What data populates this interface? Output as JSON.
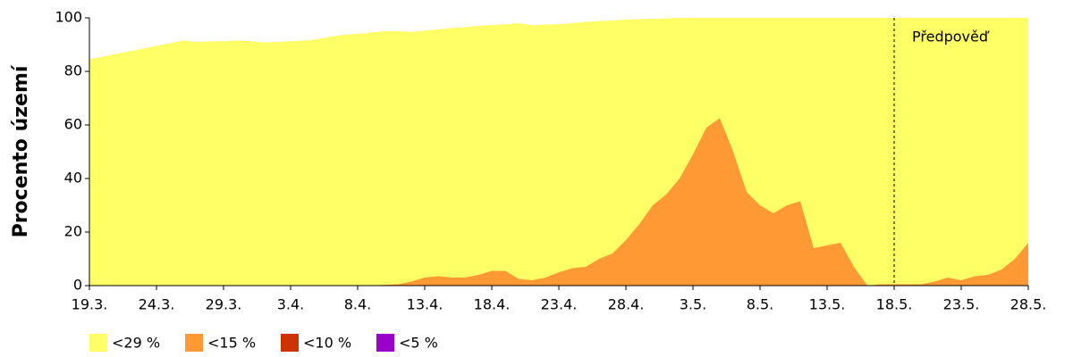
{
  "chart_data": {
    "type": "area",
    "ylabel": "Procento území",
    "categories": [
      "19.3.",
      null,
      null,
      null,
      null,
      "24.3.",
      null,
      null,
      null,
      null,
      "29.3.",
      null,
      null,
      null,
      null,
      "3.4.",
      null,
      null,
      null,
      null,
      "8.4.",
      null,
      null,
      null,
      null,
      "13.4.",
      null,
      null,
      null,
      null,
      "18.4.",
      null,
      null,
      null,
      null,
      "23.4.",
      null,
      null,
      null,
      null,
      "28.4.",
      null,
      null,
      null,
      null,
      "3.5.",
      null,
      null,
      null,
      null,
      "8.5.",
      null,
      null,
      null,
      null,
      "13.5.",
      null,
      null,
      null,
      null,
      "18.5.",
      null,
      null,
      null,
      null,
      "23.5.",
      null,
      null,
      null,
      null,
      "28.5."
    ],
    "series": [
      {
        "name": "<29 %",
        "color": "#ffff66",
        "values": [
          84.5,
          85.5,
          86.5,
          87.5,
          88.5,
          89.5,
          90.5,
          91.5,
          91,
          91.2,
          91.3,
          91.5,
          91.3,
          90.8,
          91,
          91.3,
          91.5,
          92,
          93,
          93.7,
          94,
          94.5,
          95,
          95,
          94.7,
          95.2,
          95.7,
          96.2,
          96.5,
          97,
          97.3,
          97.6,
          98,
          97.3,
          97.5,
          97.6,
          98,
          98.5,
          98.8,
          99,
          99.3,
          99.5,
          99.6,
          99.8,
          100,
          100,
          100,
          100,
          100,
          100,
          100,
          100,
          100,
          100,
          100,
          100,
          100,
          100,
          100,
          100,
          100,
          100,
          100,
          100,
          100,
          100,
          100,
          100,
          100,
          100,
          100
        ]
      },
      {
        "name": "<15 %",
        "color": "#ff9933",
        "values": [
          0,
          0,
          0,
          0,
          0,
          0,
          0,
          0,
          0,
          0,
          0,
          0,
          0,
          0,
          0,
          0,
          0,
          0,
          0,
          0,
          0,
          0,
          0.3,
          0.5,
          1.5,
          3,
          3.5,
          3,
          3,
          4,
          5.5,
          5.5,
          2.5,
          2,
          3,
          5,
          6.5,
          7,
          10,
          12,
          17,
          23,
          30,
          34,
          40,
          49,
          59,
          62.5,
          50,
          35,
          30,
          27,
          30,
          31.5,
          14,
          15,
          16,
          7,
          0,
          0.5,
          0.5,
          0.5,
          0.5,
          1.5,
          3,
          2,
          3.5,
          4,
          6,
          10,
          16
        ]
      },
      {
        "name": "<10 %",
        "color": "#cc3300",
        "values": [
          0,
          0,
          0,
          0,
          0,
          0,
          0,
          0,
          0,
          0,
          0,
          0,
          0,
          0,
          0,
          0,
          0,
          0,
          0,
          0,
          0,
          0,
          0,
          0,
          0,
          0,
          0,
          0,
          0,
          0,
          0,
          0,
          0,
          0,
          0,
          0,
          0,
          0,
          0,
          0,
          0,
          0,
          0,
          0,
          0,
          0,
          0,
          0,
          0,
          0,
          0,
          0,
          0,
          0,
          0,
          0,
          0,
          0,
          0,
          0,
          0,
          0,
          0,
          0,
          0,
          0,
          0,
          0,
          0,
          0,
          0
        ]
      },
      {
        "name": "<5 %",
        "color": "#9900cc",
        "values": [
          0,
          0,
          0,
          0,
          0,
          0,
          0,
          0,
          0,
          0,
          0,
          0,
          0,
          0,
          0,
          0,
          0,
          0,
          0,
          0,
          0,
          0,
          0,
          0,
          0,
          0,
          0,
          0,
          0,
          0,
          0,
          0,
          0,
          0,
          0,
          0,
          0,
          0,
          0,
          0,
          0,
          0,
          0,
          0,
          0,
          0,
          0,
          0,
          0,
          0,
          0,
          0,
          0,
          0,
          0,
          0,
          0,
          0,
          0,
          0,
          0,
          0,
          0,
          0,
          0,
          0,
          0,
          0,
          0,
          0,
          0
        ]
      }
    ],
    "annotation": {
      "text": "Předpověď",
      "x": "18.5."
    },
    "ylim": [
      0,
      100
    ],
    "yticks": [
      0,
      20,
      40,
      60,
      80,
      100
    ],
    "grid": false
  }
}
